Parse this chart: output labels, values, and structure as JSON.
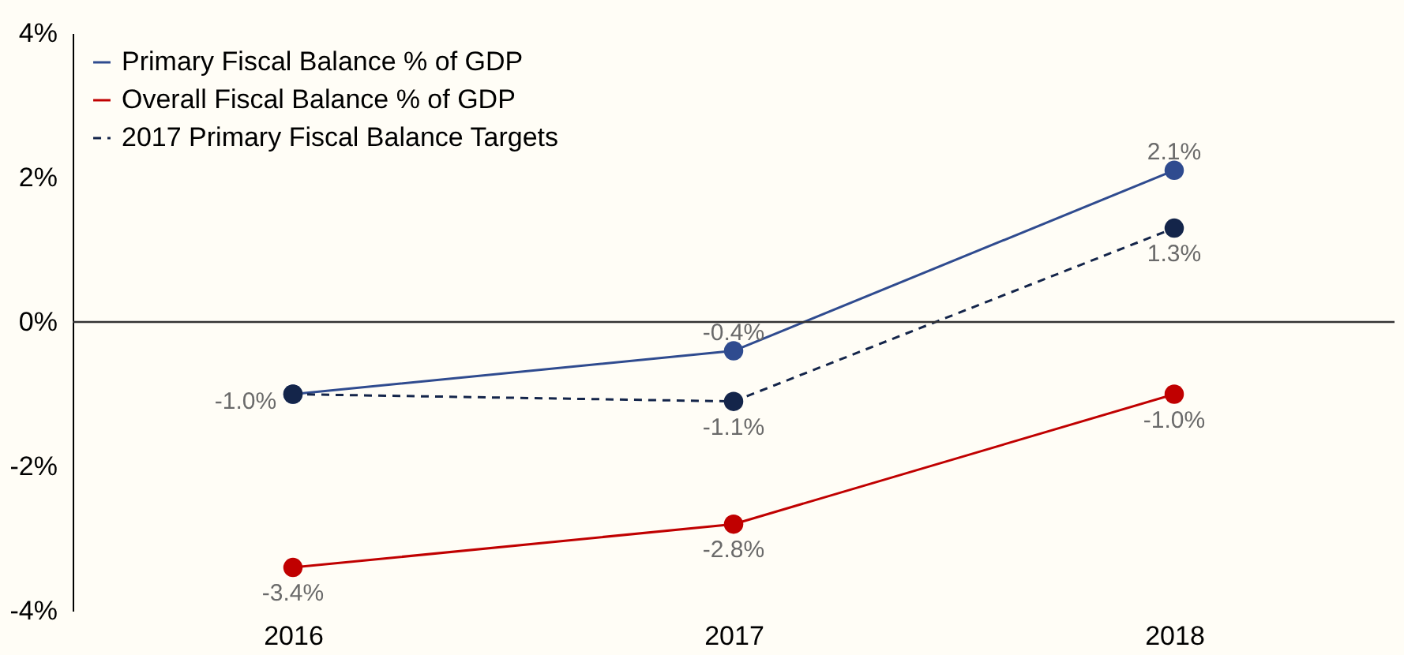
{
  "chart_data": {
    "type": "line",
    "categories": [
      "2016",
      "2017",
      "2018"
    ],
    "series": [
      {
        "name": "Primary Fiscal Balance % of GDP",
        "color": "#2f4b8f",
        "values": [
          -1.0,
          -0.4,
          2.1
        ],
        "value_labels": [
          "-1.0%",
          "-0.4%",
          "2.1%"
        ],
        "line_style": "solid"
      },
      {
        "name": "Overall Fiscal Balance % of GDP",
        "color": "#c00000",
        "values": [
          -3.4,
          -2.8,
          -1.0
        ],
        "value_labels": [
          "-3.4%",
          "-2.8%",
          "-1.0%"
        ],
        "line_style": "solid"
      },
      {
        "name": "2017 Primary Fiscal Balance Targets",
        "color": "#14254a",
        "values": [
          -1.0,
          -1.1,
          1.3
        ],
        "value_labels": [
          null,
          "-1.1%",
          "1.3%"
        ],
        "line_style": "dashed"
      }
    ],
    "ylim": [
      -4,
      4
    ],
    "yticks": [
      {
        "value": -4,
        "label": "-4%"
      },
      {
        "value": -2,
        "label": "-2%"
      },
      {
        "value": 0,
        "label": "0%"
      },
      {
        "value": 2,
        "label": "2%"
      },
      {
        "value": 4,
        "label": "4%"
      }
    ],
    "ref_lines": [
      {
        "axis": "y",
        "value": 0
      }
    ],
    "marker": "circle",
    "legend": "top left",
    "grid": false
  }
}
